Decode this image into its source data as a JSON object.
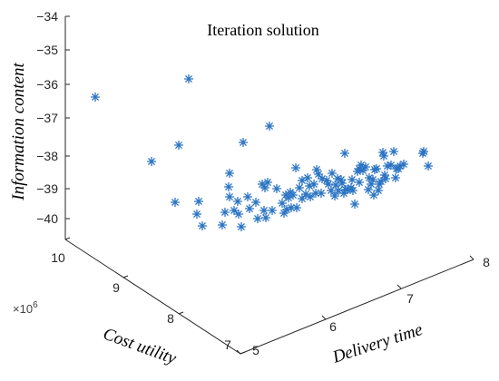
{
  "chart_data": {
    "type": "scatter",
    "title": "Iteration solution",
    "xlabel": "Delivery time",
    "ylabel": "Cost utility",
    "zlabel": "Information content",
    "y_exponent_label": "×10",
    "y_exponent_power": "6",
    "x_ticks": [
      "5",
      "6",
      "7",
      "8"
    ],
    "y_ticks": [
      "7",
      "8",
      "9",
      "10"
    ],
    "z_ticks": [
      "-40",
      "-39",
      "-38",
      "-37",
      "-36",
      "-35",
      "-34"
    ],
    "xlim": [
      5,
      8
    ],
    "ylim": [
      7,
      10
    ],
    "zlim": [
      -40.3,
      -34
    ],
    "grid": false,
    "marker_color": "#2a73c2",
    "points": [
      [
        105,
        107
      ],
      [
        208,
        87
      ],
      [
        297,
        139
      ],
      [
        167,
        178
      ],
      [
        197,
        160
      ],
      [
        268,
        157
      ],
      [
        193,
        223
      ],
      [
        219,
        222
      ],
      [
        217,
        236
      ],
      [
        223,
        249
      ],
      [
        245,
        248
      ],
      [
        248,
        234
      ],
      [
        253,
        191
      ],
      [
        252,
        206
      ],
      [
        253,
        217
      ],
      [
        258,
        232
      ],
      [
        262,
        222
      ],
      [
        263,
        236
      ],
      [
        266,
        250
      ],
      [
        273,
        217
      ],
      [
        275,
        230
      ],
      [
        282,
        223
      ],
      [
        284,
        241
      ],
      [
        289,
        203
      ],
      [
        291,
        232
      ],
      [
        292,
        207
      ],
      [
        293,
        240
      ],
      [
        295,
        201
      ],
      [
        300,
        232
      ],
      [
        305,
        208
      ],
      [
        311,
        224
      ],
      [
        313,
        235
      ],
      [
        315,
        215
      ],
      [
        316,
        231
      ],
      [
        318,
        218
      ],
      [
        320,
        212
      ],
      [
        321,
        229
      ],
      [
        323,
        215
      ],
      [
        326,
        185
      ],
      [
        327,
        229
      ],
      [
        330,
        207
      ],
      [
        333,
        219
      ],
      [
        333,
        199
      ],
      [
        337,
        214
      ],
      [
        339,
        196
      ],
      [
        341,
        205
      ],
      [
        342,
        217
      ],
      [
        346,
        203
      ],
      [
        348,
        213
      ],
      [
        349,
        187
      ],
      [
        351,
        192
      ],
      [
        354,
        213
      ],
      [
        355,
        197
      ],
      [
        360,
        199
      ],
      [
        362,
        203
      ],
      [
        365,
        210
      ],
      [
        366,
        191
      ],
      [
        369,
        216
      ],
      [
        370,
        204
      ],
      [
        372,
        197
      ],
      [
        373,
        210
      ],
      [
        376,
        198
      ],
      [
        377,
        202
      ],
      [
        379,
        213
      ],
      [
        380,
        169
      ],
      [
        381,
        209
      ],
      [
        383,
        209
      ],
      [
        387,
        207
      ],
      [
        388,
        198
      ],
      [
        389,
        210
      ],
      [
        391,
        225
      ],
      [
        394,
        189
      ],
      [
        396,
        186
      ],
      [
        396,
        201
      ],
      [
        398,
        182
      ],
      [
        400,
        188
      ],
      [
        403,
        184
      ],
      [
        406,
        209
      ],
      [
        407,
        196
      ],
      [
        409,
        203
      ],
      [
        411,
        198
      ],
      [
        412,
        215
      ],
      [
        413,
        187
      ],
      [
        415,
        186
      ],
      [
        417,
        210
      ],
      [
        418,
        203
      ],
      [
        420,
        200
      ],
      [
        422,
        168
      ],
      [
        423,
        172
      ],
      [
        424,
        193
      ],
      [
        425,
        197
      ],
      [
        427,
        183
      ],
      [
        431,
        182
      ],
      [
        434,
        167
      ],
      [
        436,
        196
      ],
      [
        437,
        186
      ],
      [
        439,
        186
      ],
      [
        441,
        183
      ],
      [
        445,
        181
      ],
      [
        466,
        169
      ],
      [
        467,
        167
      ],
      [
        472,
        183
      ]
    ]
  }
}
